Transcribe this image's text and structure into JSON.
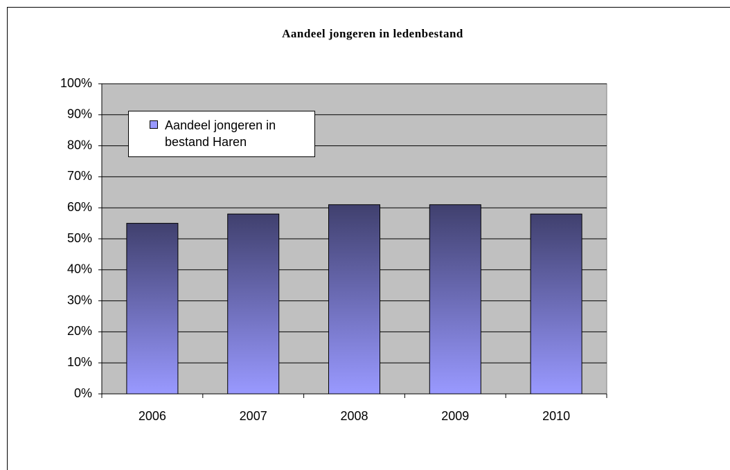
{
  "chart_data": {
    "type": "bar",
    "title": "Aandeel jongeren in ledenbestand",
    "categories": [
      "2006",
      "2007",
      "2008",
      "2009",
      "2010"
    ],
    "series": [
      {
        "name": "Aandeel jongeren in bestand Haren",
        "color": "#9999ff",
        "values": [
          55,
          58,
          61,
          61,
          58
        ]
      }
    ],
    "ylim": [
      0,
      100
    ],
    "yticks": [
      {
        "value": 0,
        "label": "0%"
      },
      {
        "value": 10,
        "label": "10%"
      },
      {
        "value": 20,
        "label": "20%"
      },
      {
        "value": 30,
        "label": "30%"
      },
      {
        "value": 40,
        "label": "40%"
      },
      {
        "value": 50,
        "label": "50%"
      },
      {
        "value": 60,
        "label": "60%"
      },
      {
        "value": 70,
        "label": "70%"
      },
      {
        "value": 80,
        "label": "80%"
      },
      {
        "value": 90,
        "label": "90%"
      },
      {
        "value": 100,
        "label": "100%"
      }
    ],
    "grid": true,
    "legend": "top-left"
  }
}
